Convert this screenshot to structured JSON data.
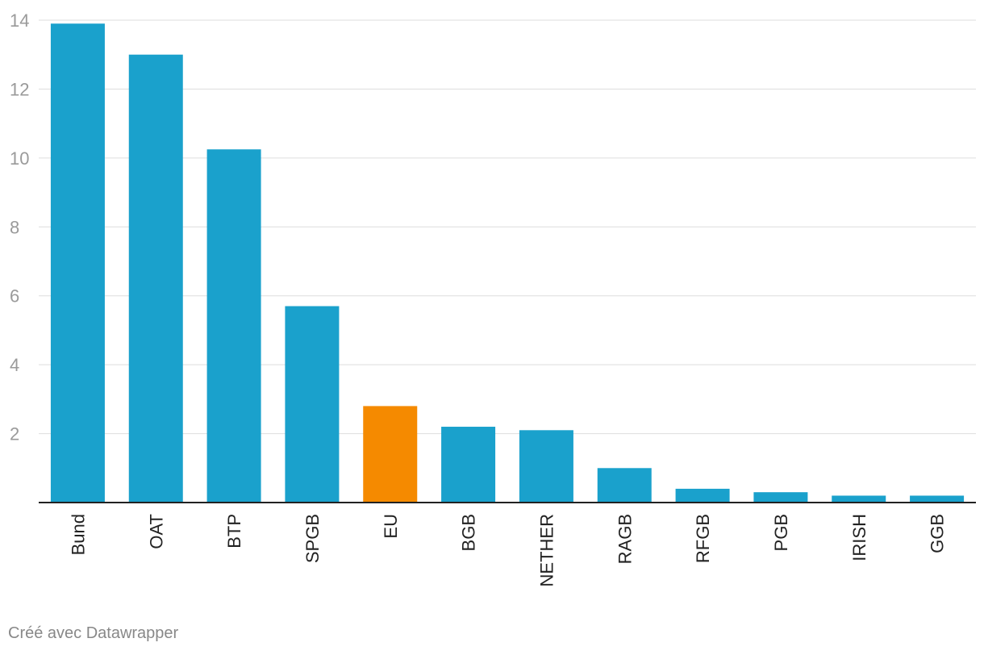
{
  "chart_data": {
    "type": "bar",
    "categories": [
      "Bund",
      "OAT",
      "BTP",
      "SPGB",
      "EU",
      "BGB",
      "NETHER",
      "RAGB",
      "RFGB",
      "PGB",
      "IRISH",
      "GGB"
    ],
    "values": [
      13.9,
      13.0,
      10.25,
      5.7,
      2.8,
      2.2,
      2.1,
      1.0,
      0.4,
      0.3,
      0.2,
      0.2
    ],
    "highlight": "EU",
    "colors": {
      "bar": "#1aa1cc",
      "highlight": "#f58a00",
      "grid": "#dddddd",
      "baseline": "#222222"
    },
    "yticks": [
      2,
      4,
      6,
      8,
      10,
      12,
      14
    ],
    "ylim": [
      0,
      14.2
    ],
    "grid": true
  },
  "footer": "Créé avec Datawrapper"
}
